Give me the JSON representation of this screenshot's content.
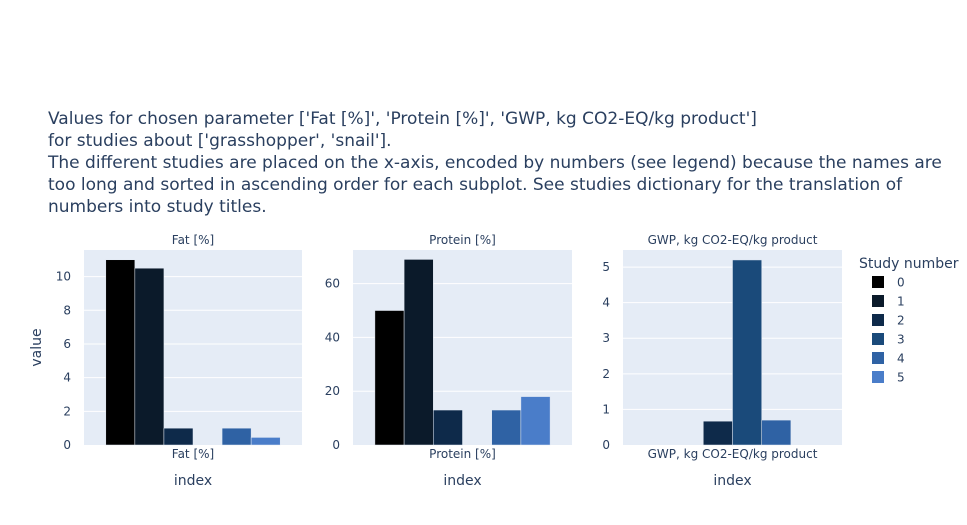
{
  "title_lines": [
    "Values for chosen parameter ['Fat [%]', 'Protein [%]', 'GWP, kg CO2-EQ/kg product']",
    "for studies about ['grasshopper', 'snail'].",
    "The different studies are placed on the x-axis, encoded by numbers (see legend) because the names are",
    "too long and sorted in ascending order for each subplot. See studies dictionary for the translation of",
    "numbers into study titles."
  ],
  "colors": {
    "bg": "#e5ecf6",
    "grid": "#ffffff",
    "text": "#2a3f5f",
    "series": [
      "#000000",
      "#0b1a2a",
      "#0e2a4a",
      "#1a4a7a",
      "#2f62a4",
      "#4a7dc9"
    ]
  },
  "legend": {
    "title": "Study number",
    "items": [
      "0",
      "1",
      "2",
      "3",
      "4",
      "5"
    ]
  },
  "chart_data": [
    {
      "type": "bar",
      "title": "Fat [%]",
      "categories": [
        "Fat [%]"
      ],
      "xlabel": "index",
      "ylabel": "value",
      "ylim": [
        0,
        11.58
      ],
      "yticks": [
        0,
        2,
        4,
        6,
        8,
        10
      ],
      "series": [
        {
          "name": "0",
          "values": [
            11
          ]
        },
        {
          "name": "1",
          "values": [
            10.5
          ]
        },
        {
          "name": "2",
          "values": [
            1
          ]
        },
        {
          "name": "3",
          "values": [
            null
          ]
        },
        {
          "name": "4",
          "values": [
            1
          ]
        },
        {
          "name": "5",
          "values": [
            0.45
          ]
        }
      ]
    },
    {
      "type": "bar",
      "title": "Protein [%]",
      "categories": [
        "Protein [%]"
      ],
      "xlabel": "index",
      "ylabel": "",
      "ylim": [
        0,
        72.5
      ],
      "yticks": [
        0,
        20,
        40,
        60
      ],
      "series": [
        {
          "name": "0",
          "values": [
            50
          ]
        },
        {
          "name": "1",
          "values": [
            69
          ]
        },
        {
          "name": "2",
          "values": [
            13
          ]
        },
        {
          "name": "3",
          "values": [
            null
          ]
        },
        {
          "name": "4",
          "values": [
            13
          ]
        },
        {
          "name": "5",
          "values": [
            18
          ]
        }
      ]
    },
    {
      "type": "bar",
      "title": "GWP, kg CO2-EQ/kg product",
      "categories": [
        "GWP, kg CO2-EQ/kg product"
      ],
      "xlabel": "index",
      "ylabel": "",
      "ylim": [
        0,
        5.48
      ],
      "yticks": [
        0,
        1,
        2,
        3,
        4,
        5
      ],
      "series": [
        {
          "name": "0",
          "values": [
            null
          ]
        },
        {
          "name": "1",
          "values": [
            null
          ]
        },
        {
          "name": "2",
          "values": [
            0.67
          ]
        },
        {
          "name": "3",
          "values": [
            5.2
          ]
        },
        {
          "name": "4",
          "values": [
            0.7
          ]
        },
        {
          "name": "5",
          "values": [
            null
          ]
        }
      ]
    }
  ]
}
